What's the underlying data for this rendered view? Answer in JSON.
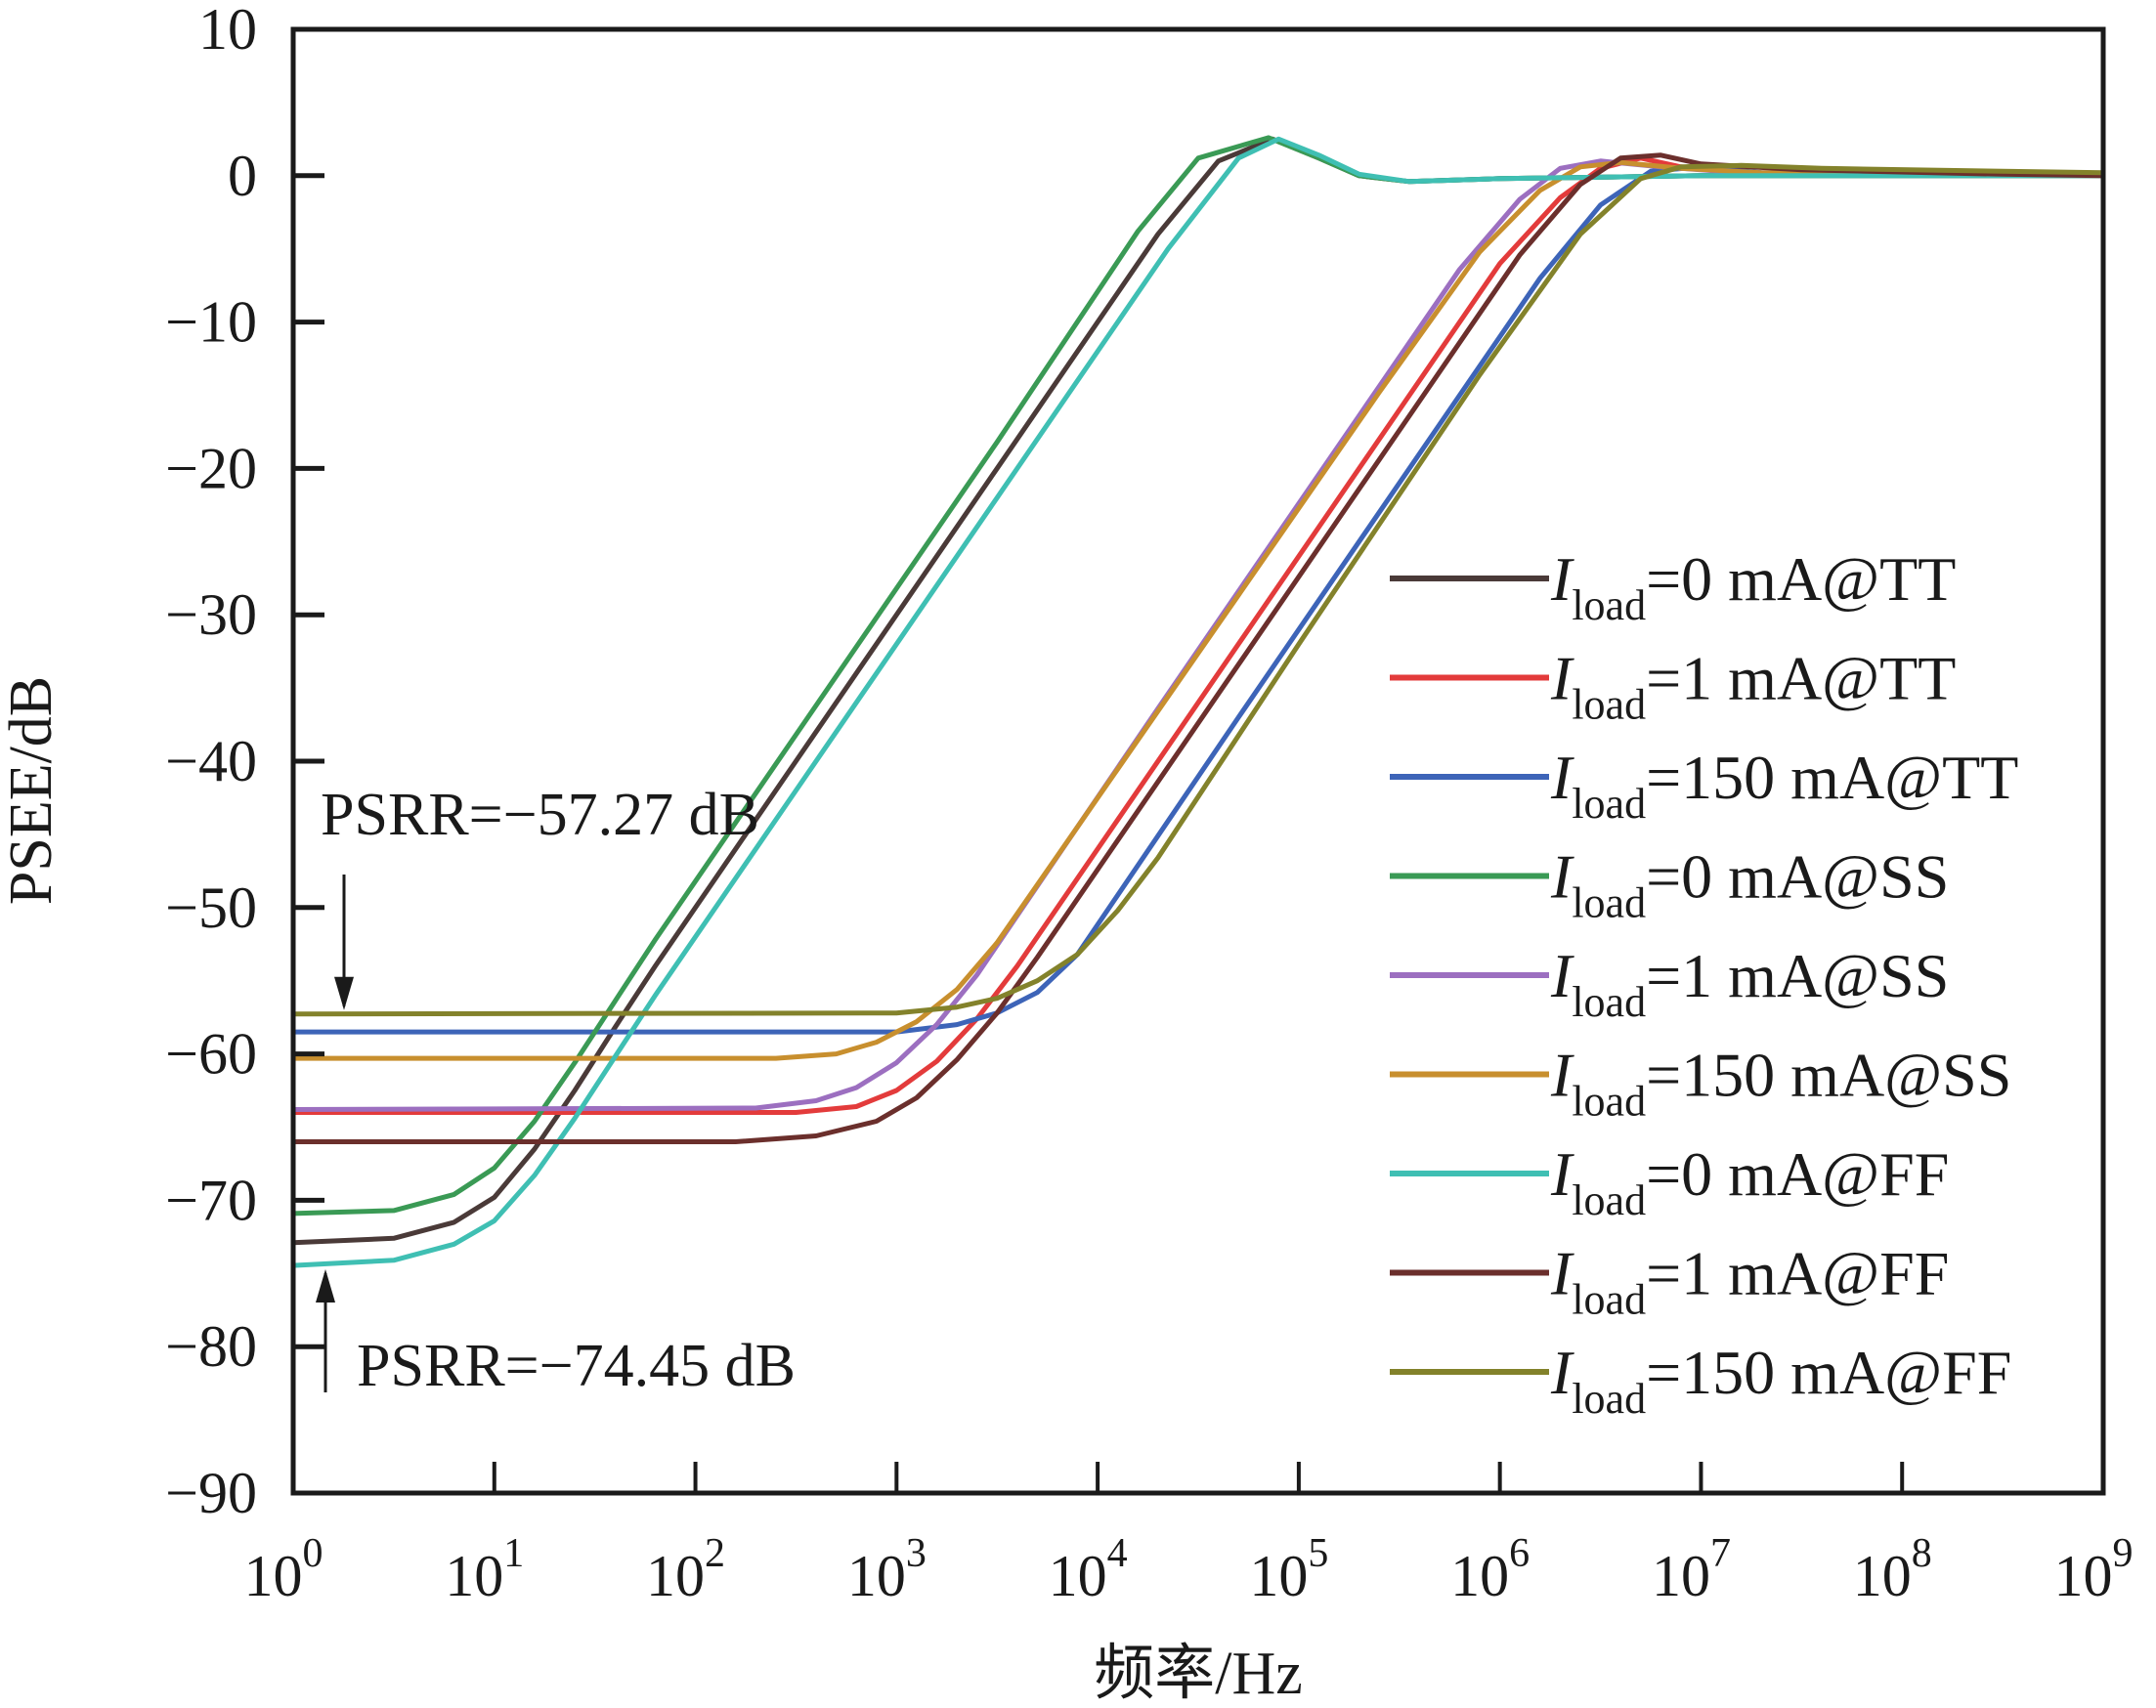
{
  "chart_data": {
    "type": "line",
    "title": "",
    "xlabel": "频率/Hz",
    "ylabel": "PSEE/dB",
    "xscale": "log",
    "xlim_log10": [
      0,
      9
    ],
    "ylim": [
      -90,
      10
    ],
    "x_tick_labels": [
      {
        "base": "10",
        "exp": "0"
      },
      {
        "base": "10",
        "exp": "1"
      },
      {
        "base": "10",
        "exp": "2"
      },
      {
        "base": "10",
        "exp": "3"
      },
      {
        "base": "10",
        "exp": "4"
      },
      {
        "base": "10",
        "exp": "5"
      },
      {
        "base": "10",
        "exp": "6"
      },
      {
        "base": "10",
        "exp": "7"
      },
      {
        "base": "10",
        "exp": "8"
      },
      {
        "base": "10",
        "exp": "9"
      }
    ],
    "y_ticks": [
      10,
      0,
      -10,
      -20,
      -30,
      -40,
      -50,
      -60,
      -70,
      -80,
      -90
    ],
    "y_tick_labels": [
      "10",
      "0",
      "−10",
      "−20",
      "−30",
      "−40",
      "−50",
      "−60",
      "−70",
      "−80",
      "−90"
    ],
    "grid": false,
    "legend_position": "right",
    "annotations": [
      {
        "text": "PSRR=−57.27 dB",
        "value_db": -57.27,
        "arrow": "down"
      },
      {
        "text": "PSRR=−74.45 dB",
        "value_db": -74.45,
        "arrow": "up"
      }
    ],
    "series": [
      {
        "name": "Iload=0 mA@TT",
        "label_main": "=0 mA@TT",
        "color": "#4a3a38",
        "points": [
          [
            0,
            -72.9
          ],
          [
            0.5,
            -72.6
          ],
          [
            0.8,
            -71.5
          ],
          [
            1.0,
            -69.8
          ],
          [
            1.2,
            -66.5
          ],
          [
            1.4,
            -62.5
          ],
          [
            1.6,
            -58.2
          ],
          [
            1.8,
            -54
          ],
          [
            2.5,
            -40
          ],
          [
            3.5,
            -20
          ],
          [
            4.3,
            -4
          ],
          [
            4.6,
            1.0
          ],
          [
            4.87,
            2.5
          ],
          [
            5.1,
            1.2
          ],
          [
            5.3,
            0
          ],
          [
            5.55,
            -0.4
          ],
          [
            6,
            -0.2
          ],
          [
            7,
            0
          ],
          [
            9,
            0
          ]
        ]
      },
      {
        "name": "Iload=1 mA@TT",
        "label_main": "=1 mA@TT",
        "color": "#e33b3b",
        "points": [
          [
            0,
            -64
          ],
          [
            2.5,
            -64
          ],
          [
            2.8,
            -63.6
          ],
          [
            3.0,
            -62.5
          ],
          [
            3.2,
            -60.5
          ],
          [
            3.4,
            -57.6
          ],
          [
            3.6,
            -54
          ],
          [
            4.5,
            -36
          ],
          [
            5.5,
            -16
          ],
          [
            6.0,
            -6
          ],
          [
            6.3,
            -1.5
          ],
          [
            6.5,
            0.5
          ],
          [
            6.7,
            1.2
          ],
          [
            6.9,
            0.6
          ],
          [
            7.2,
            0.2
          ],
          [
            9,
            0
          ]
        ]
      },
      {
        "name": "Iload=150 mA@TT",
        "label_main": "=150 mA@TT",
        "color": "#3d64b8",
        "points": [
          [
            0,
            -58.5
          ],
          [
            3.0,
            -58.5
          ],
          [
            3.3,
            -58
          ],
          [
            3.5,
            -57.2
          ],
          [
            3.7,
            -55.8
          ],
          [
            3.9,
            -53.2
          ],
          [
            4.7,
            -37
          ],
          [
            5.7,
            -17
          ],
          [
            6.2,
            -7
          ],
          [
            6.5,
            -2
          ],
          [
            6.75,
            0.3
          ],
          [
            7.0,
            0.6
          ],
          [
            7.3,
            0.2
          ],
          [
            9,
            0
          ]
        ]
      },
      {
        "name": "Iload=0 mA@SS",
        "label_main": "=0 mA@SS",
        "color": "#3a9a55",
        "points": [
          [
            0,
            -70.9
          ],
          [
            0.5,
            -70.7
          ],
          [
            0.8,
            -69.6
          ],
          [
            1.0,
            -67.8
          ],
          [
            1.2,
            -64.6
          ],
          [
            1.4,
            -60.6
          ],
          [
            1.6,
            -56.4
          ],
          [
            1.8,
            -52.2
          ],
          [
            2.5,
            -38.2
          ],
          [
            3.5,
            -18.2
          ],
          [
            4.2,
            -3.8
          ],
          [
            4.5,
            1.2
          ],
          [
            4.85,
            2.6
          ],
          [
            5.1,
            1.2
          ],
          [
            5.3,
            0
          ],
          [
            5.55,
            -0.4
          ],
          [
            6,
            -0.2
          ],
          [
            7,
            0
          ],
          [
            9,
            0
          ]
        ]
      },
      {
        "name": "Iload=1 mA@SS",
        "label_main": "=1 mA@SS",
        "color": "#9c6fc0",
        "points": [
          [
            0,
            -63.8
          ],
          [
            2.3,
            -63.7
          ],
          [
            2.6,
            -63.2
          ],
          [
            2.8,
            -62.3
          ],
          [
            3.0,
            -60.6
          ],
          [
            3.2,
            -58
          ],
          [
            3.4,
            -54.6
          ],
          [
            4.3,
            -36.4
          ],
          [
            5.3,
            -16.4
          ],
          [
            5.8,
            -6.4
          ],
          [
            6.1,
            -1.6
          ],
          [
            6.3,
            0.5
          ],
          [
            6.5,
            1.0
          ],
          [
            6.8,
            0.6
          ],
          [
            7.2,
            0.2
          ],
          [
            9,
            0
          ]
        ]
      },
      {
        "name": "Iload=150 mA@SS",
        "label_main": "=150 mA@SS",
        "color": "#c88f2e",
        "points": [
          [
            0,
            -60.3
          ],
          [
            2.4,
            -60.3
          ],
          [
            2.7,
            -60
          ],
          [
            2.9,
            -59.2
          ],
          [
            3.1,
            -57.8
          ],
          [
            3.3,
            -55.6
          ],
          [
            3.5,
            -52.4
          ],
          [
            4.4,
            -34.6
          ],
          [
            5.4,
            -14.8
          ],
          [
            5.9,
            -5.2
          ],
          [
            6.2,
            -1.0
          ],
          [
            6.4,
            0.6
          ],
          [
            6.6,
            0.9
          ],
          [
            6.9,
            0.5
          ],
          [
            7.3,
            0.2
          ],
          [
            9,
            0
          ]
        ]
      },
      {
        "name": "Iload=0 mA@FF",
        "label_main": "=0 mA@FF",
        "color": "#3fbfb3",
        "points": [
          [
            0,
            -74.45
          ],
          [
            0.5,
            -74.1
          ],
          [
            0.8,
            -73
          ],
          [
            1.0,
            -71.4
          ],
          [
            1.2,
            -68.3
          ],
          [
            1.4,
            -64.4
          ],
          [
            1.6,
            -60.2
          ],
          [
            1.8,
            -56
          ],
          [
            2.5,
            -42
          ],
          [
            3.5,
            -22
          ],
          [
            4.35,
            -5
          ],
          [
            4.7,
            1.2
          ],
          [
            4.9,
            2.5
          ],
          [
            5.1,
            1.4
          ],
          [
            5.3,
            0.1
          ],
          [
            5.55,
            -0.4
          ],
          [
            6,
            -0.2
          ],
          [
            7,
            0
          ],
          [
            9,
            0
          ]
        ]
      },
      {
        "name": "Iload=1 mA@FF",
        "label_main": "=1 mA@FF",
        "color": "#6b2f2c",
        "points": [
          [
            0,
            -66
          ],
          [
            2.2,
            -66
          ],
          [
            2.6,
            -65.6
          ],
          [
            2.9,
            -64.6
          ],
          [
            3.1,
            -63
          ],
          [
            3.3,
            -60.4
          ],
          [
            3.5,
            -57.2
          ],
          [
            3.7,
            -53.4
          ],
          [
            4.6,
            -35.4
          ],
          [
            5.6,
            -15.4
          ],
          [
            6.1,
            -5.4
          ],
          [
            6.4,
            -0.6
          ],
          [
            6.6,
            1.2
          ],
          [
            6.8,
            1.4
          ],
          [
            7.0,
            0.8
          ],
          [
            7.5,
            0.4
          ],
          [
            8.5,
            0.1
          ],
          [
            9,
            0
          ]
        ]
      },
      {
        "name": "Iload=150 mA@FF",
        "label_main": "=150 mA@FF",
        "color": "#83822b",
        "points": [
          [
            0,
            -57.27
          ],
          [
            3.0,
            -57.2
          ],
          [
            3.3,
            -56.8
          ],
          [
            3.5,
            -56.2
          ],
          [
            3.7,
            -55
          ],
          [
            3.9,
            -53.2
          ],
          [
            4.1,
            -50.2
          ],
          [
            4.3,
            -46.6
          ],
          [
            5.0,
            -32
          ],
          [
            5.9,
            -13.6
          ],
          [
            6.4,
            -4
          ],
          [
            6.7,
            -0.2
          ],
          [
            6.9,
            0.6
          ],
          [
            7.2,
            0.7
          ],
          [
            7.6,
            0.5
          ],
          [
            8.5,
            0.3
          ],
          [
            9,
            0.2
          ]
        ]
      }
    ],
    "legend_prefix": "I",
    "legend_subscript": "load"
  }
}
